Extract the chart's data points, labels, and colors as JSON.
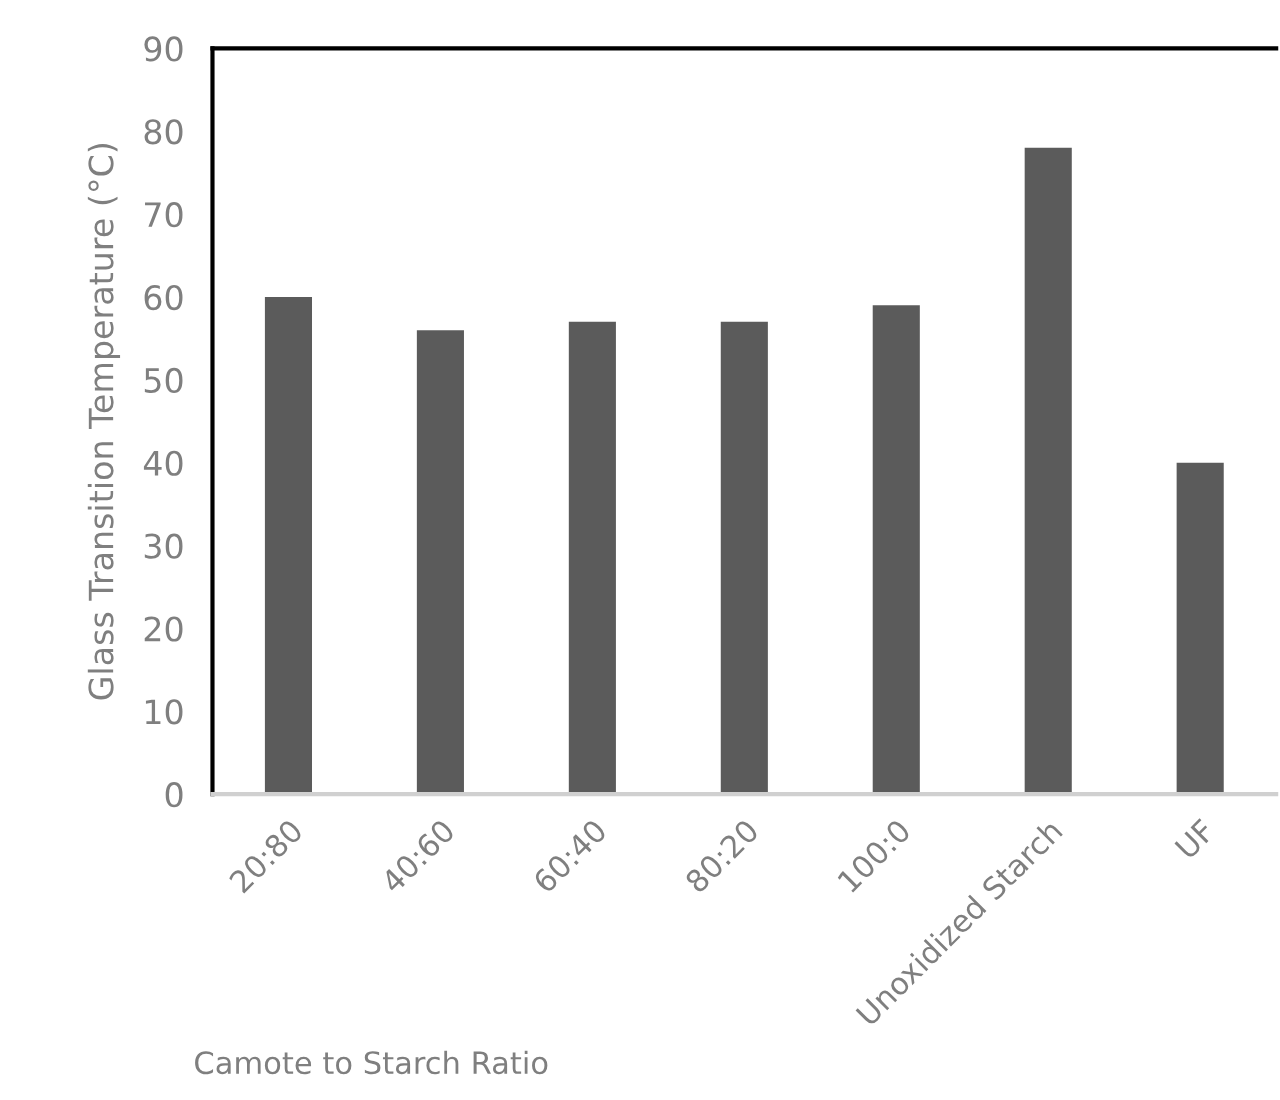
{
  "chart_data": {
    "type": "bar",
    "ylabel": "Glass Transition Temperature (°C)",
    "xlabel": "Camote to Starch Ratio",
    "categories": [
      "20:80",
      "40:60",
      "60:40",
      "80:20",
      "100:0",
      "Unoxidized Starch",
      "UF"
    ],
    "values": [
      60,
      56,
      57,
      57,
      59,
      78,
      40
    ],
    "color": "#5b5b5b",
    "ylim": [
      0,
      90
    ],
    "yticks": [
      0,
      10,
      20,
      30,
      40,
      50,
      60,
      70,
      80,
      90
    ],
    "grid": false,
    "legend": false
  }
}
